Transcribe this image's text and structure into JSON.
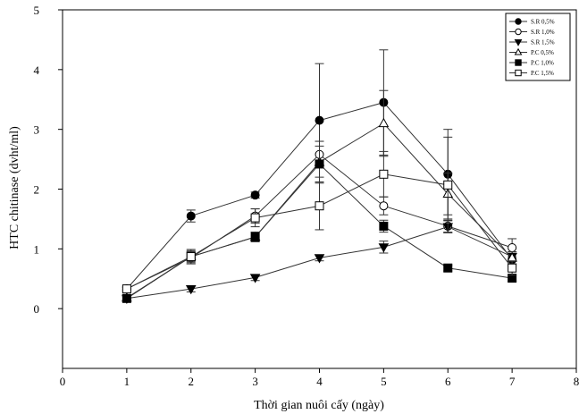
{
  "chart_data": {
    "type": "line",
    "xlabel": "Thời gian nuôi cấy (ngày)",
    "ylabel": "HTC chitinase (dvht/ml)",
    "xlim": [
      0,
      8
    ],
    "ylim": [
      -1,
      5
    ],
    "xticks": [
      0,
      1,
      2,
      3,
      4,
      5,
      6,
      7,
      8
    ],
    "yticks": [
      0,
      1,
      2,
      3,
      4,
      5
    ],
    "grid": false,
    "legend_position": "top-right",
    "x": [
      1,
      2,
      3,
      4,
      5,
      6,
      7
    ],
    "series": [
      {
        "name": "S.R 0,5%",
        "marker": "circle",
        "filled": true,
        "values": [
          0.33,
          1.55,
          1.9,
          3.15,
          3.45,
          2.25,
          0.82
        ],
        "errors": [
          0.03,
          0.1,
          0.05,
          0.95,
          0.88,
          0.75,
          0.1
        ]
      },
      {
        "name": "S.R 1,0%",
        "marker": "circle",
        "filled": false,
        "values": [
          0.33,
          0.85,
          1.55,
          2.58,
          1.72,
          1.38,
          1.02
        ],
        "errors": [
          0.03,
          0.1,
          0.12,
          0.22,
          0.15,
          0.1,
          0.15
        ]
      },
      {
        "name": "S.R 1,5%",
        "marker": "triangle-down",
        "filled": true,
        "values": [
          0.17,
          0.33,
          0.52,
          0.85,
          1.03,
          1.37,
          0.87
        ],
        "errors": [
          0.03,
          0.05,
          0.05,
          0.05,
          0.1,
          0.1,
          0.08
        ]
      },
      {
        "name": "P.C 0,5%",
        "marker": "triangle-up",
        "filled": false,
        "values": [
          0.18,
          0.87,
          1.2,
          2.45,
          3.1,
          1.92,
          0.85
        ],
        "errors": [
          0.03,
          0.1,
          0.08,
          0.35,
          0.55,
          0.35,
          0.1
        ]
      },
      {
        "name": "P.C 1,0%",
        "marker": "square",
        "filled": true,
        "values": [
          0.17,
          0.87,
          1.2,
          2.42,
          1.38,
          0.68,
          0.51
        ],
        "errors": [
          0.03,
          0.08,
          0.08,
          0.3,
          0.1,
          0.05,
          0.05
        ]
      },
      {
        "name": "P.C 1,5%",
        "marker": "square",
        "filled": false,
        "values": [
          0.33,
          0.87,
          1.52,
          1.72,
          2.25,
          2.07,
          0.68
        ],
        "errors": [
          0.03,
          0.12,
          0.15,
          0.4,
          0.38,
          0.8,
          0.12
        ]
      }
    ]
  }
}
